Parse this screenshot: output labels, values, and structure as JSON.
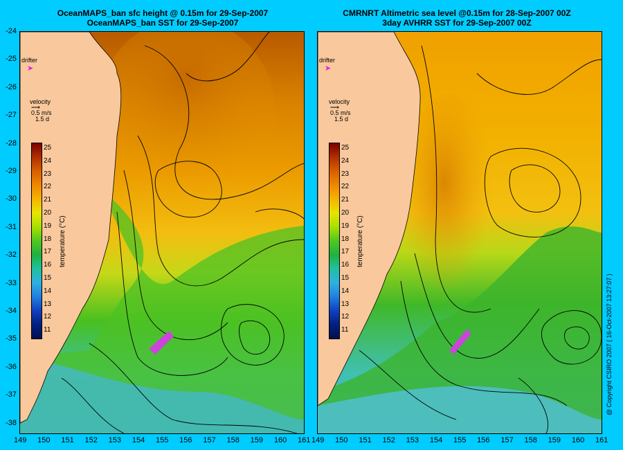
{
  "left_panel": {
    "title_line1": "OceanMAPS_ban sfc height @ 0.15m for 29-Sep-2007",
    "title_line2": "OceanMAPS_ban SST for 29-Sep-2007"
  },
  "right_panel": {
    "title_line1": "CMRNRT Altimetric sea level  @0.15m  for 28-Sep-2007 00Z",
    "title_line2": "3day AVHRR SST for 29-Sep-2007 00Z"
  },
  "legend": {
    "drifter_label": "drifter",
    "velocity_label": "velocity",
    "velocity_scale": "0.5 m/s",
    "velocity_time": "1.5 d",
    "colorbar_title": "temperature (°C)",
    "colorbar_ticks": [
      "25",
      "24",
      "23",
      "22",
      "21",
      "20",
      "19",
      "18",
      "17",
      "16",
      "15",
      "14",
      "13",
      "12",
      "11"
    ]
  },
  "axes": {
    "y_ticks": [
      "-24",
      "-25",
      "-26",
      "-27",
      "-28",
      "-29",
      "-30",
      "-31",
      "-32",
      "-33",
      "-34",
      "-35",
      "-36",
      "-37",
      "-38"
    ],
    "x_ticks_left": [
      "149",
      "150",
      "151",
      "152",
      "153",
      "154",
      "155",
      "156",
      "157",
      "158",
      "159",
      "160",
      "161"
    ],
    "x_ticks_right": [
      "149",
      "150",
      "151",
      "152",
      "153",
      "154",
      "155",
      "156",
      "157",
      "158",
      "159",
      "160",
      "161"
    ]
  },
  "copyright": "@ Copyright CSIRO 2007 ( 16-Oct-2007 13:27:07 )",
  "colors": {
    "background": "#00ccff",
    "land": "#f9c89c",
    "warm": "#e08a00",
    "mid": "#f2c400",
    "cool": "#4ec820",
    "cold": "#38b4c8"
  }
}
